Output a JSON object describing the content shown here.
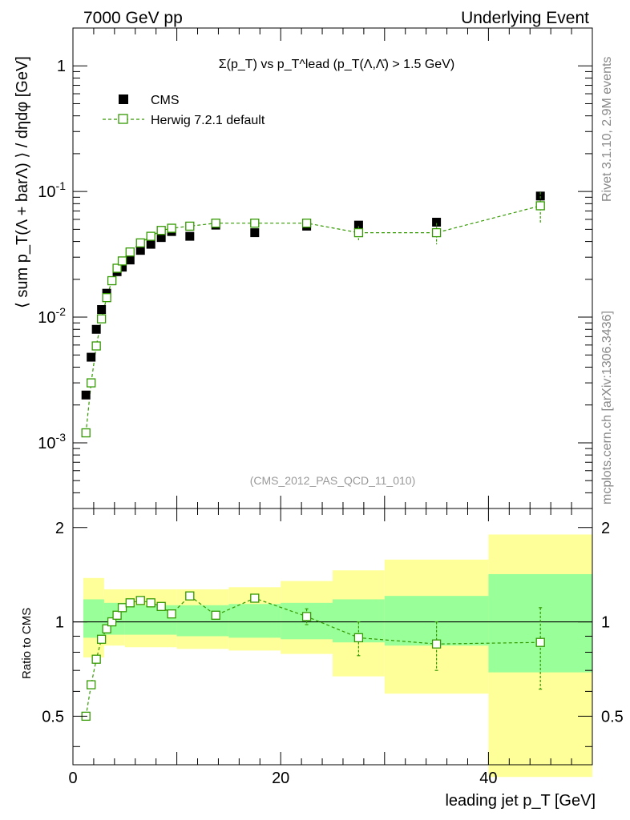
{
  "header": {
    "left": "7000 GeV pp",
    "right": "Underlying Event"
  },
  "side_labels": {
    "rivet": "Rivet 3.1.10,  2.9M events",
    "site": "mcplots.cern.ch [arXiv:1306.3436]"
  },
  "chart_data": [
    {
      "type": "scatter",
      "panel": "main",
      "title": "Σ(p_T) vs p_T^lead (p_T(Λ,Λ̄) > 1.5 GeV)",
      "ylabel": "⟨ sum p_T(Λ + barΛ) ⟩ / dηdφ [GeV]",
      "xlabel": "leading jet p_T [GeV]",
      "annotation": "(CMS_2012_PAS_QCD_11_010)",
      "yscale": "log",
      "xlim": [
        0,
        50
      ],
      "ylim": [
        0.0003,
        2
      ],
      "y_tick_labels": [
        "10^-3",
        "10^-2",
        "10^-1",
        "1"
      ],
      "legend_position": "top-left",
      "series": [
        {
          "name": "CMS",
          "color": "#000000",
          "marker": "filled-square",
          "x": [
            1.25,
            1.75,
            2.25,
            2.75,
            3.25,
            3.75,
            4.25,
            4.75,
            5.5,
            6.5,
            7.5,
            8.5,
            9.5,
            11.25,
            13.75,
            17.5,
            22.5,
            27.5,
            35,
            45
          ],
          "y": [
            0.0024,
            0.0048,
            0.008,
            0.0115,
            0.0155,
            0.0195,
            0.023,
            0.025,
            0.0285,
            0.034,
            0.038,
            0.043,
            0.048,
            0.044,
            0.054,
            0.047,
            0.053,
            0.054,
            0.057,
            0.092
          ]
        },
        {
          "name": "Herwig 7.2.1 default",
          "color": "#339900",
          "marker": "open-square",
          "x": [
            1.25,
            1.75,
            2.25,
            2.75,
            3.25,
            3.75,
            4.25,
            4.75,
            5.5,
            6.5,
            7.5,
            8.5,
            9.5,
            11.25,
            13.75,
            17.5,
            22.5,
            27.5,
            35,
            45
          ],
          "y": [
            0.0012,
            0.003,
            0.0059,
            0.0097,
            0.0143,
            0.0195,
            0.0245,
            0.028,
            0.033,
            0.039,
            0.044,
            0.049,
            0.051,
            0.053,
            0.056,
            0.056,
            0.056,
            0.047,
            0.047,
            0.077
          ],
          "yerr": [
            0,
            0,
            0,
            0,
            0,
            0,
            0,
            0,
            0,
            0,
            0,
            0,
            0,
            0,
            0,
            0,
            0,
            0.006,
            0.009,
            0.022
          ]
        }
      ]
    },
    {
      "type": "scatter",
      "panel": "ratio",
      "ylabel": "Ratio to CMS",
      "xlabel": "leading jet p_T [GeV]",
      "xlim": [
        0,
        50
      ],
      "ylim": [
        0.35,
        2.3
      ],
      "x_ticks": [
        0,
        20,
        40
      ],
      "y_ticks": [
        0.5,
        1,
        2
      ],
      "reference_line": 1,
      "bands": {
        "edges": [
          1,
          3,
          5,
          10,
          15,
          20,
          25,
          30,
          40,
          50
        ],
        "inner_low": [
          0.89,
          0.91,
          0.91,
          0.9,
          0.89,
          0.88,
          0.86,
          0.84,
          0.69
        ],
        "inner_high": [
          1.18,
          1.15,
          1.13,
          1.13,
          1.14,
          1.15,
          1.18,
          1.21,
          1.42
        ],
        "outer_low": [
          0.77,
          0.84,
          0.83,
          0.82,
          0.81,
          0.79,
          0.67,
          0.59,
          0.32
        ],
        "outer_high": [
          1.38,
          1.27,
          1.27,
          1.27,
          1.29,
          1.35,
          1.46,
          1.58,
          1.9
        ],
        "inner_color": "#99ff99",
        "outer_color": "#ffff99"
      },
      "series": [
        {
          "name": "Herwig 7.2.1 default",
          "color": "#339900",
          "marker": "open-square",
          "x": [
            1.25,
            1.75,
            2.25,
            2.75,
            3.25,
            3.75,
            4.25,
            4.75,
            5.5,
            6.5,
            7.5,
            8.5,
            9.5,
            11.25,
            13.75,
            17.5,
            22.5,
            27.5,
            35,
            45
          ],
          "y": [
            0.5,
            0.63,
            0.76,
            0.88,
            0.95,
            1.0,
            1.05,
            1.11,
            1.15,
            1.17,
            1.15,
            1.12,
            1.06,
            1.21,
            1.05,
            1.19,
            1.04,
            0.89,
            0.85,
            0.86
          ],
          "yerr": [
            0,
            0,
            0,
            0,
            0,
            0,
            0,
            0,
            0,
            0,
            0,
            0,
            0,
            0,
            0,
            0.03,
            0.06,
            0.11,
            0.15,
            0.25
          ]
        }
      ]
    }
  ]
}
